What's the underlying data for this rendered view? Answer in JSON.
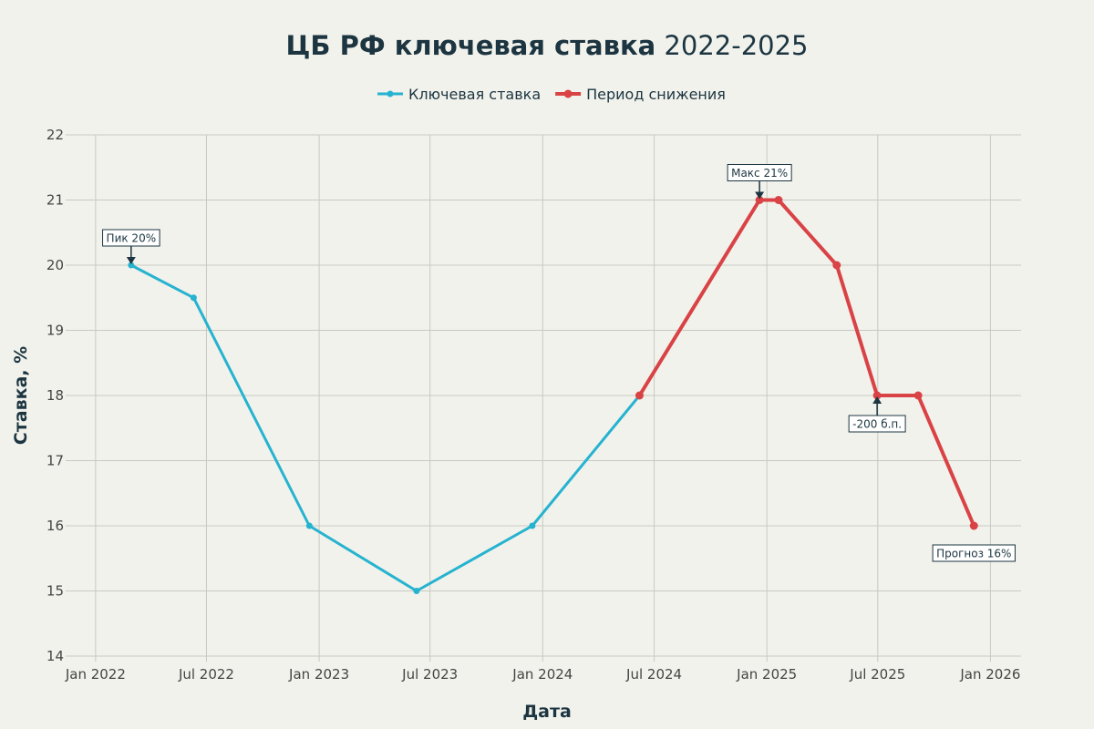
{
  "chart_data": {
    "type": "line",
    "title_bold": "ЦБ РФ ключевая ставка",
    "title_rest": "2022-2025",
    "xlabel": "Дата",
    "ylabel": "Ставка, %",
    "ylim": [
      14,
      22
    ],
    "yticks": [
      14,
      15,
      16,
      17,
      18,
      19,
      20,
      21,
      22
    ],
    "xlim": [
      "2021-11-22",
      "2026-02-20"
    ],
    "xticks": [
      {
        "date": "2022-01-01",
        "label": "Jan 2022"
      },
      {
        "date": "2022-07-01",
        "label": "Jul 2022"
      },
      {
        "date": "2023-01-01",
        "label": "Jan 2023"
      },
      {
        "date": "2023-07-01",
        "label": "Jul 2023"
      },
      {
        "date": "2024-01-01",
        "label": "Jan 2024"
      },
      {
        "date": "2024-07-01",
        "label": "Jul 2024"
      },
      {
        "date": "2025-01-01",
        "label": "Jan 2025"
      },
      {
        "date": "2025-07-01",
        "label": "Jul 2025"
      },
      {
        "date": "2026-01-01",
        "label": "Jan 2026"
      }
    ],
    "grid": true,
    "legend_position": "top-center",
    "series": [
      {
        "name": "Ключевая ставка",
        "color": "#26b3cf",
        "points": [
          {
            "x": "2022-02-28",
            "y": 20
          },
          {
            "x": "2022-06-10",
            "y": 19.5
          },
          {
            "x": "2022-12-16",
            "y": 16
          },
          {
            "x": "2023-06-09",
            "y": 15
          },
          {
            "x": "2023-12-15",
            "y": 16
          },
          {
            "x": "2024-06-07",
            "y": 18
          }
        ]
      },
      {
        "name": "Период снижения",
        "color": "#d94346",
        "points": [
          {
            "x": "2024-06-07",
            "y": 18
          },
          {
            "x": "2024-12-20",
            "y": 21
          },
          {
            "x": "2025-01-20",
            "y": 21
          },
          {
            "x": "2025-04-25",
            "y": 20
          },
          {
            "x": "2025-06-30",
            "y": 18
          },
          {
            "x": "2025-09-05",
            "y": 18
          },
          {
            "x": "2025-12-05",
            "y": 16
          }
        ]
      }
    ],
    "annotations": [
      {
        "x": "2022-02-28",
        "y": 20,
        "text": "Пик 20%",
        "arrow": "down"
      },
      {
        "x": "2024-12-20",
        "y": 21,
        "text": "Макс 21%",
        "arrow": "down"
      },
      {
        "x": "2025-06-30",
        "y": 18,
        "text": "-200 б.п.",
        "arrow": "up"
      },
      {
        "x": "2025-12-05",
        "y": 16,
        "text": "Прогноз 16%",
        "arrow": "none"
      }
    ]
  }
}
